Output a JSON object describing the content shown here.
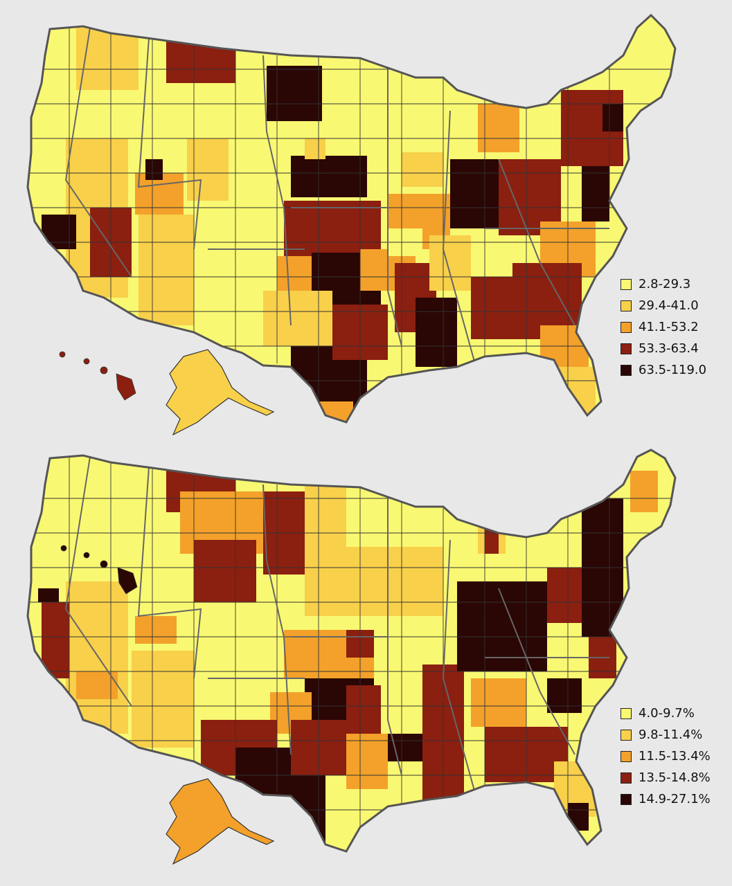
{
  "colors": [
    "#f9f872",
    "#f8d04a",
    "#f3a12a",
    "#8b1f10",
    "#2a0604"
  ],
  "panels": [
    {
      "legend": [
        "2.8-29.3",
        "29.4-41.0",
        "41.1-53.2",
        "53.3-63.4",
        "63.5-119.0"
      ]
    },
    {
      "legend": [
        "4.0-9.7%",
        "9.8-11.4%",
        "11.5-13.4%",
        "13.5-14.8%",
        "14.9-27.1%"
      ]
    }
  ]
}
